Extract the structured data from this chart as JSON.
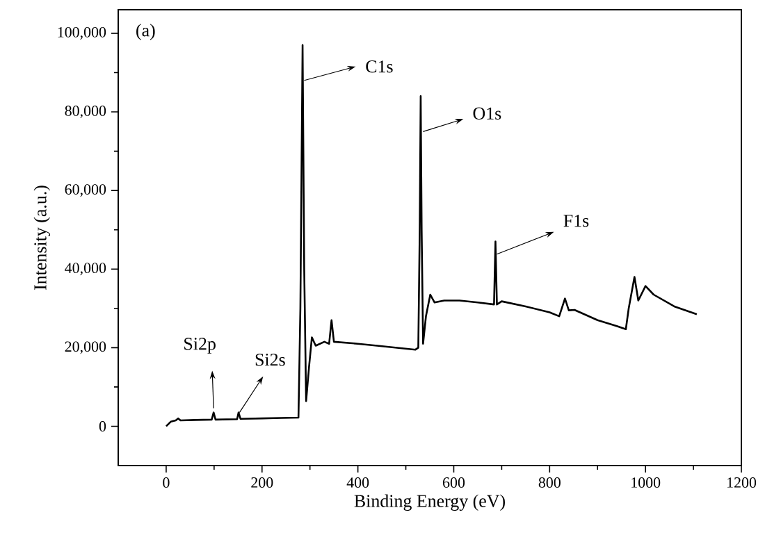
{
  "chart_data": {
    "type": "line",
    "xlabel": "Binding Energy (eV)",
    "ylabel": "Intensity (a.u.)",
    "xlim": [
      -100,
      1200
    ],
    "ylim": [
      -10000,
      106000
    ],
    "xticks": [
      0,
      200,
      400,
      600,
      800,
      1000,
      1200
    ],
    "yticks": [
      0,
      {
        "value": 20000,
        "label": "20,000"
      },
      {
        "value": 40000,
        "label": "40,000"
      },
      {
        "value": 60000,
        "label": "60,000"
      },
      {
        "value": 80000,
        "label": "80,000"
      },
      {
        "value": 100000,
        "label": "100,000"
      }
    ],
    "marker": "none",
    "line_style": "solid",
    "series": [
      {
        "color": "#000000",
        "x": [
          0,
          10,
          20,
          25,
          30,
          60,
          95,
          99,
          103,
          148,
          151,
          155,
          200,
          240,
          276,
          280,
          284.6,
          288,
          292,
          298,
          304,
          312,
          330,
          340,
          345,
          350,
          400,
          440,
          480,
          520,
          526,
          529,
          531,
          533,
          536,
          542,
          551,
          560,
          580,
          612,
          650,
          684,
          687,
          690,
          700,
          750,
          800,
          820,
          832,
          840,
          852,
          900,
          940,
          959,
          965,
          977,
          985,
          1000,
          1017,
          1060,
          1107
        ],
        "values": [
          0,
          1200,
          1500,
          2000,
          1500,
          1600,
          1700,
          3500,
          1700,
          1800,
          3500,
          1900,
          2000,
          2100,
          2200,
          30000,
          97000,
          40000,
          6400,
          15000,
          22600,
          20500,
          21500,
          21000,
          27000,
          21500,
          21000,
          20500,
          20000,
          19500,
          20000,
          50000,
          84000,
          50000,
          21000,
          28000,
          33500,
          31500,
          32000,
          32000,
          31500,
          31000,
          47000,
          31000,
          31800,
          30500,
          29000,
          28000,
          32500,
          29500,
          29600,
          27000,
          25500,
          24700,
          30000,
          38000,
          32000,
          35700,
          33500,
          30500,
          28500
        ]
      }
    ],
    "annotations": [
      "(a)",
      {
        "text": "C1s",
        "x": 288,
        "y": 88000
      },
      {
        "text": "O1s",
        "x": 536,
        "y": 75000
      },
      {
        "text": "F1s",
        "x": 690,
        "y": 43800
      },
      {
        "text": "Si2p",
        "x": 99,
        "y": 4600
      },
      {
        "text": "Si2s",
        "x": 153,
        "y": 3500
      }
    ]
  }
}
